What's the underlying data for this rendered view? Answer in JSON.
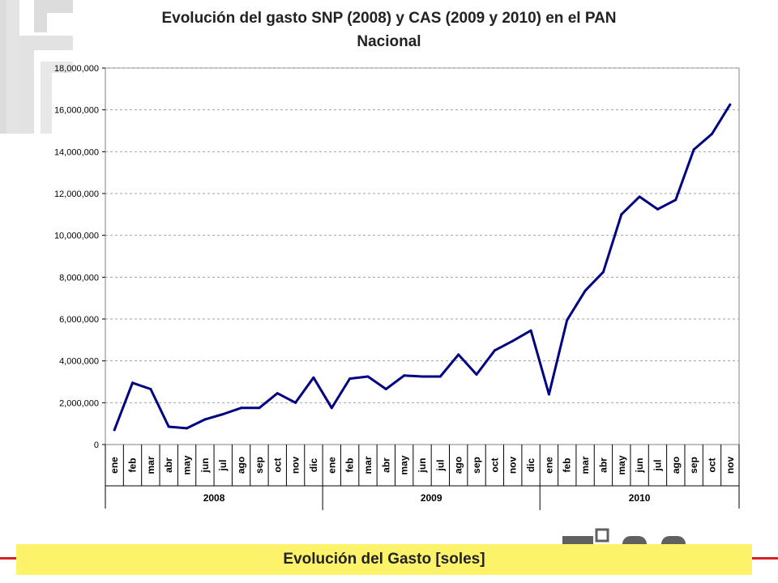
{
  "page": {
    "title_line1": "Evolución del gasto SNP (2008) y CAS (2009 y 2010) en el PAN",
    "title_line2": "Nacional",
    "banner": "Evolución del Gasto [soles]",
    "colors": {
      "line": "#000080",
      "grid": "#a0a0a0",
      "banner_bg": "#fcf36b",
      "accent_red": "#d8202a",
      "logo_gray": "#dcdcdc"
    }
  },
  "chart_data": {
    "type": "line",
    "title": "Evolución del gasto SNP (2008) y CAS (2009 y 2010) en el PAN Nacional",
    "xlabel": "",
    "ylabel": "",
    "ylim": [
      0,
      18000000
    ],
    "yticks": [
      0,
      2000000,
      4000000,
      6000000,
      8000000,
      10000000,
      12000000,
      14000000,
      16000000,
      18000000
    ],
    "ytick_labels": [
      "0",
      "2,000,000",
      "4,000,000",
      "6,000,000",
      "8,000,000",
      "10,000,000",
      "12,000,000",
      "14,000,000",
      "16,000,000",
      "18,000,000"
    ],
    "grid": true,
    "categories": [
      "ene",
      "feb",
      "mar",
      "abr",
      "may",
      "jun",
      "jul",
      "ago",
      "sep",
      "oct",
      "nov",
      "dic",
      "ene",
      "feb",
      "mar",
      "abr",
      "may",
      "jun",
      "jul",
      "ago",
      "sep",
      "oct",
      "nov",
      "dic",
      "ene",
      "feb",
      "mar",
      "abr",
      "may",
      "jun",
      "jul",
      "ago",
      "sep",
      "oct",
      "nov"
    ],
    "groups": [
      {
        "label": "2008",
        "count": 12
      },
      {
        "label": "2009",
        "count": 12
      },
      {
        "label": "2010",
        "count": 11
      }
    ],
    "series": [
      {
        "name": "Gasto",
        "values": [
          700000,
          2950000,
          2650000,
          850000,
          780000,
          1200000,
          1450000,
          1750000,
          1750000,
          2450000,
          2000000,
          3200000,
          1750000,
          3150000,
          3250000,
          2650000,
          3300000,
          3250000,
          3250000,
          4300000,
          3350000,
          4500000,
          4950000,
          5450000,
          2400000,
          5950000,
          7350000,
          8250000,
          11000000,
          11850000,
          11250000,
          11700000,
          14100000,
          14850000,
          16250000
        ]
      }
    ]
  }
}
